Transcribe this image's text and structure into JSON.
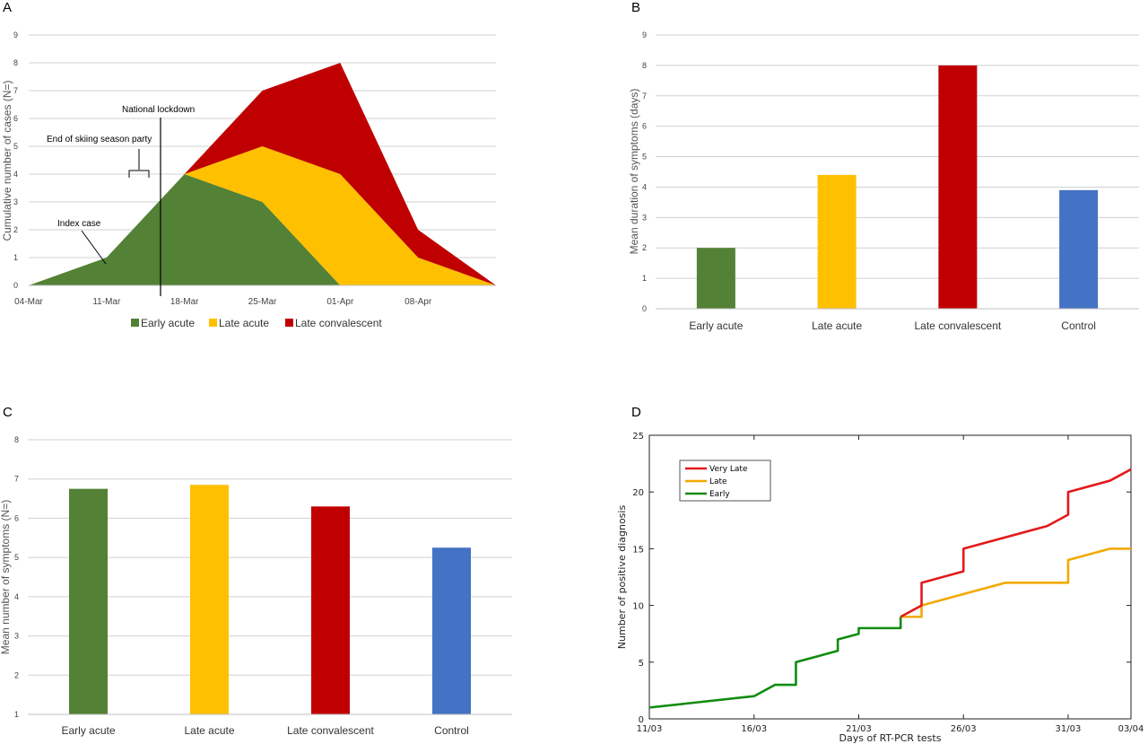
{
  "chart_data": [
    {
      "panel": "A",
      "type": "area",
      "stacked": true,
      "ylabel": "Cumulative number of cases (N=)",
      "ylim": [
        0,
        9
      ],
      "yticks": [
        "0",
        "1",
        "2",
        "3",
        "4",
        "5",
        "6",
        "7",
        "8",
        "9"
      ],
      "x": [
        0,
        7,
        14,
        21,
        28,
        35,
        42
      ],
      "xticks": [
        "04-Mar",
        "11-Mar",
        "18-Mar",
        "25-Mar",
        "01-Apr",
        "08-Apr"
      ],
      "series": [
        {
          "name": "Early acute",
          "color": "#538135",
          "values": [
            0,
            1,
            4,
            3,
            0,
            0,
            0
          ]
        },
        {
          "name": "Late acute",
          "color": "#FFC000",
          "values": [
            0,
            0,
            0,
            2,
            4,
            1,
            0
          ]
        },
        {
          "name": "Late convalescent",
          "color": "#C00000",
          "values": [
            0,
            0,
            0,
            2,
            4,
            1,
            0
          ]
        }
      ],
      "annotations": [
        {
          "text": "Index case"
        },
        {
          "text": "End of skiing season party"
        },
        {
          "text": "National lockdown"
        }
      ],
      "legend": "bottom",
      "grid": true
    },
    {
      "panel": "B",
      "type": "bar",
      "ylabel": "Mean duration of symptoms (days)",
      "ylim": [
        0,
        9
      ],
      "yticks": [
        "0",
        "1",
        "2",
        "3",
        "4",
        "5",
        "6",
        "7",
        "8",
        "9"
      ],
      "categories": [
        "Early acute",
        "Late acute",
        "Late convalescent",
        "Control"
      ],
      "values": [
        2.0,
        4.4,
        8.0,
        3.9
      ],
      "colors": [
        "#538135",
        "#FFC000",
        "#C00000",
        "#4472C4"
      ],
      "grid": true
    },
    {
      "panel": "C",
      "type": "bar",
      "ylabel": "Mean number of symptoms (N=)",
      "ylim": [
        1,
        8
      ],
      "yticks": [
        "1",
        "2",
        "3",
        "4",
        "5",
        "6",
        "7",
        "8"
      ],
      "categories": [
        "Early acute",
        "Late acute",
        "Late convalescent",
        "Control"
      ],
      "values": [
        6.75,
        6.85,
        6.3,
        5.25
      ],
      "colors": [
        "#538135",
        "#FFC000",
        "#C00000",
        "#4472C4"
      ],
      "grid": true
    },
    {
      "panel": "D",
      "type": "line",
      "step": true,
      "xlabel": "Days of RT-PCR tests",
      "ylabel": "Number of positive diagnosis",
      "ylim": [
        0,
        25
      ],
      "yticks": [
        "0",
        "5",
        "10",
        "15",
        "20",
        "25"
      ],
      "xlim": [
        "11/03",
        "03/04"
      ],
      "xticks": [
        "11/03",
        "16/03",
        "21/03",
        "26/03",
        "31/03",
        "03/04"
      ],
      "series": [
        {
          "name": "Very Late",
          "color": "#E31A1C",
          "x": [
            "23/03",
            "24/03",
            "24/03",
            "26/03",
            "26/03",
            "30/03",
            "31/03",
            "31/03",
            "02/04",
            "03/04"
          ],
          "y": [
            9,
            10,
            12,
            13,
            15,
            17,
            18,
            20,
            21,
            22
          ]
        },
        {
          "name": "Late",
          "color": "#F2A900",
          "x": [
            "23/03",
            "24/03",
            "24/03",
            "27/03",
            "28/03",
            "31/03",
            "31/03",
            "02/04",
            "03/04"
          ],
          "y": [
            9,
            9,
            10,
            11.5,
            12,
            12,
            14,
            15,
            15
          ]
        },
        {
          "name": "Early",
          "color": "#118C11",
          "x": [
            "11/03",
            "16/03",
            "16/03",
            "17/03",
            "17/03",
            "18/03",
            "18/03",
            "19/03",
            "20/03",
            "20/03",
            "21/03",
            "21/03",
            "22/03",
            "23/03",
            "23/03"
          ],
          "y": [
            1,
            2,
            2,
            3,
            3,
            3,
            5,
            5.5,
            6,
            7,
            7.5,
            8,
            8,
            8,
            9
          ]
        }
      ],
      "legend": "top-left"
    }
  ]
}
